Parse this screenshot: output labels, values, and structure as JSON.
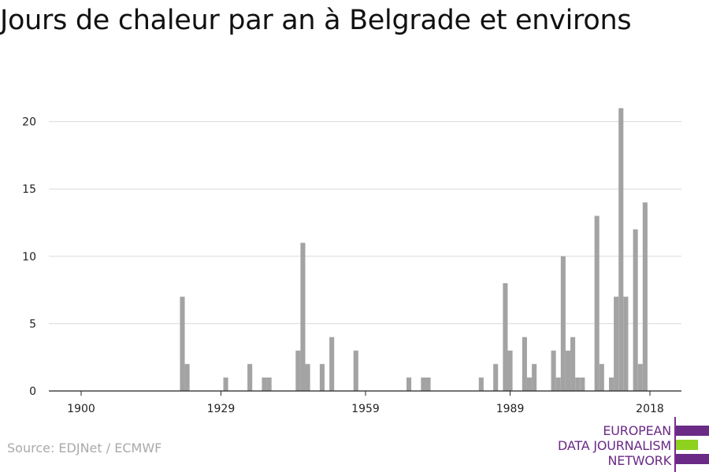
{
  "chart_data": {
    "type": "bar",
    "title": "Jours de chaleur par an à Belgrade et environs",
    "xlabel": "",
    "ylabel": "",
    "xlim": [
      1899,
      2021
    ],
    "ylim": [
      0,
      22
    ],
    "y_ticks": [
      0,
      5,
      10,
      15,
      20
    ],
    "x_ticks": [
      1900,
      1929,
      1959,
      1989,
      2018
    ],
    "grid": true,
    "bar_color": "#a3a3a3",
    "points": [
      {
        "x": 1921,
        "y": 7
      },
      {
        "x": 1922,
        "y": 2
      },
      {
        "x": 1930,
        "y": 1
      },
      {
        "x": 1935,
        "y": 2
      },
      {
        "x": 1938,
        "y": 1
      },
      {
        "x": 1939,
        "y": 1
      },
      {
        "x": 1945,
        "y": 3
      },
      {
        "x": 1946,
        "y": 11
      },
      {
        "x": 1947,
        "y": 2
      },
      {
        "x": 1950,
        "y": 2
      },
      {
        "x": 1952,
        "y": 4
      },
      {
        "x": 1957,
        "y": 3
      },
      {
        "x": 1968,
        "y": 1
      },
      {
        "x": 1971,
        "y": 1
      },
      {
        "x": 1972,
        "y": 1
      },
      {
        "x": 1983,
        "y": 1
      },
      {
        "x": 1986,
        "y": 2
      },
      {
        "x": 1988,
        "y": 8
      },
      {
        "x": 1989,
        "y": 3
      },
      {
        "x": 1992,
        "y": 4
      },
      {
        "x": 1993,
        "y": 1
      },
      {
        "x": 1994,
        "y": 2
      },
      {
        "x": 1998,
        "y": 3
      },
      {
        "x": 1999,
        "y": 1
      },
      {
        "x": 2000,
        "y": 10
      },
      {
        "x": 2001,
        "y": 3
      },
      {
        "x": 2002,
        "y": 4
      },
      {
        "x": 2003,
        "y": 1
      },
      {
        "x": 2004,
        "y": 1
      },
      {
        "x": 2007,
        "y": 13
      },
      {
        "x": 2008,
        "y": 2
      },
      {
        "x": 2010,
        "y": 1
      },
      {
        "x": 2011,
        "y": 7
      },
      {
        "x": 2012,
        "y": 21
      },
      {
        "x": 2013,
        "y": 7
      },
      {
        "x": 2015,
        "y": 12
      },
      {
        "x": 2016,
        "y": 2
      },
      {
        "x": 2017,
        "y": 14
      }
    ]
  },
  "source": "Source: EDJNet / ECMWF",
  "logo": {
    "lines": [
      "EUROPEAN",
      "DATA JOURNALISM",
      "NETWORK"
    ],
    "colors": {
      "purple": "#6a2a86",
      "green": "#8ed11e"
    }
  }
}
